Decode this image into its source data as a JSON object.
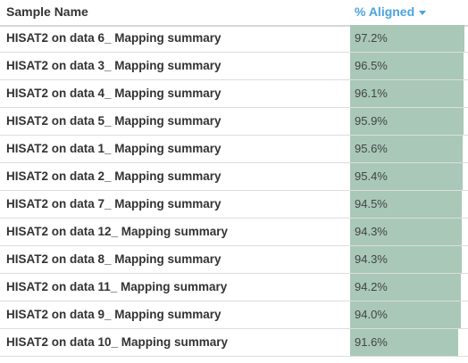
{
  "header": {
    "sample_name": "Sample Name",
    "pct_aligned": "% Aligned"
  },
  "colors": {
    "bar": "#a9c8b8",
    "header_accent": "#4aa3df"
  },
  "rows": [
    {
      "name": "HISAT2 on data 6_ Mapping summary",
      "label": "97.2%",
      "value": 97.2
    },
    {
      "name": "HISAT2 on data 3_ Mapping summary",
      "label": "96.5%",
      "value": 96.5
    },
    {
      "name": "HISAT2 on data 4_ Mapping summary",
      "label": "96.1%",
      "value": 96.1
    },
    {
      "name": "HISAT2 on data 5_ Mapping summary",
      "label": "95.9%",
      "value": 95.9
    },
    {
      "name": "HISAT2 on data 1_ Mapping summary",
      "label": "95.6%",
      "value": 95.6
    },
    {
      "name": "HISAT2 on data 2_ Mapping summary",
      "label": "95.4%",
      "value": 95.4
    },
    {
      "name": "HISAT2 on data 7_ Mapping summary",
      "label": "94.5%",
      "value": 94.5
    },
    {
      "name": "HISAT2 on data 12_ Mapping summary",
      "label": "94.3%",
      "value": 94.3
    },
    {
      "name": "HISAT2 on data 8_ Mapping summary",
      "label": "94.3%",
      "value": 94.3
    },
    {
      "name": "HISAT2 on data 11_ Mapping summary",
      "label": "94.2%",
      "value": 94.2
    },
    {
      "name": "HISAT2 on data 9_ Mapping summary",
      "label": "94.0%",
      "value": 94.0
    },
    {
      "name": "HISAT2 on data 10_ Mapping summary",
      "label": "91.6%",
      "value": 91.6
    }
  ]
}
